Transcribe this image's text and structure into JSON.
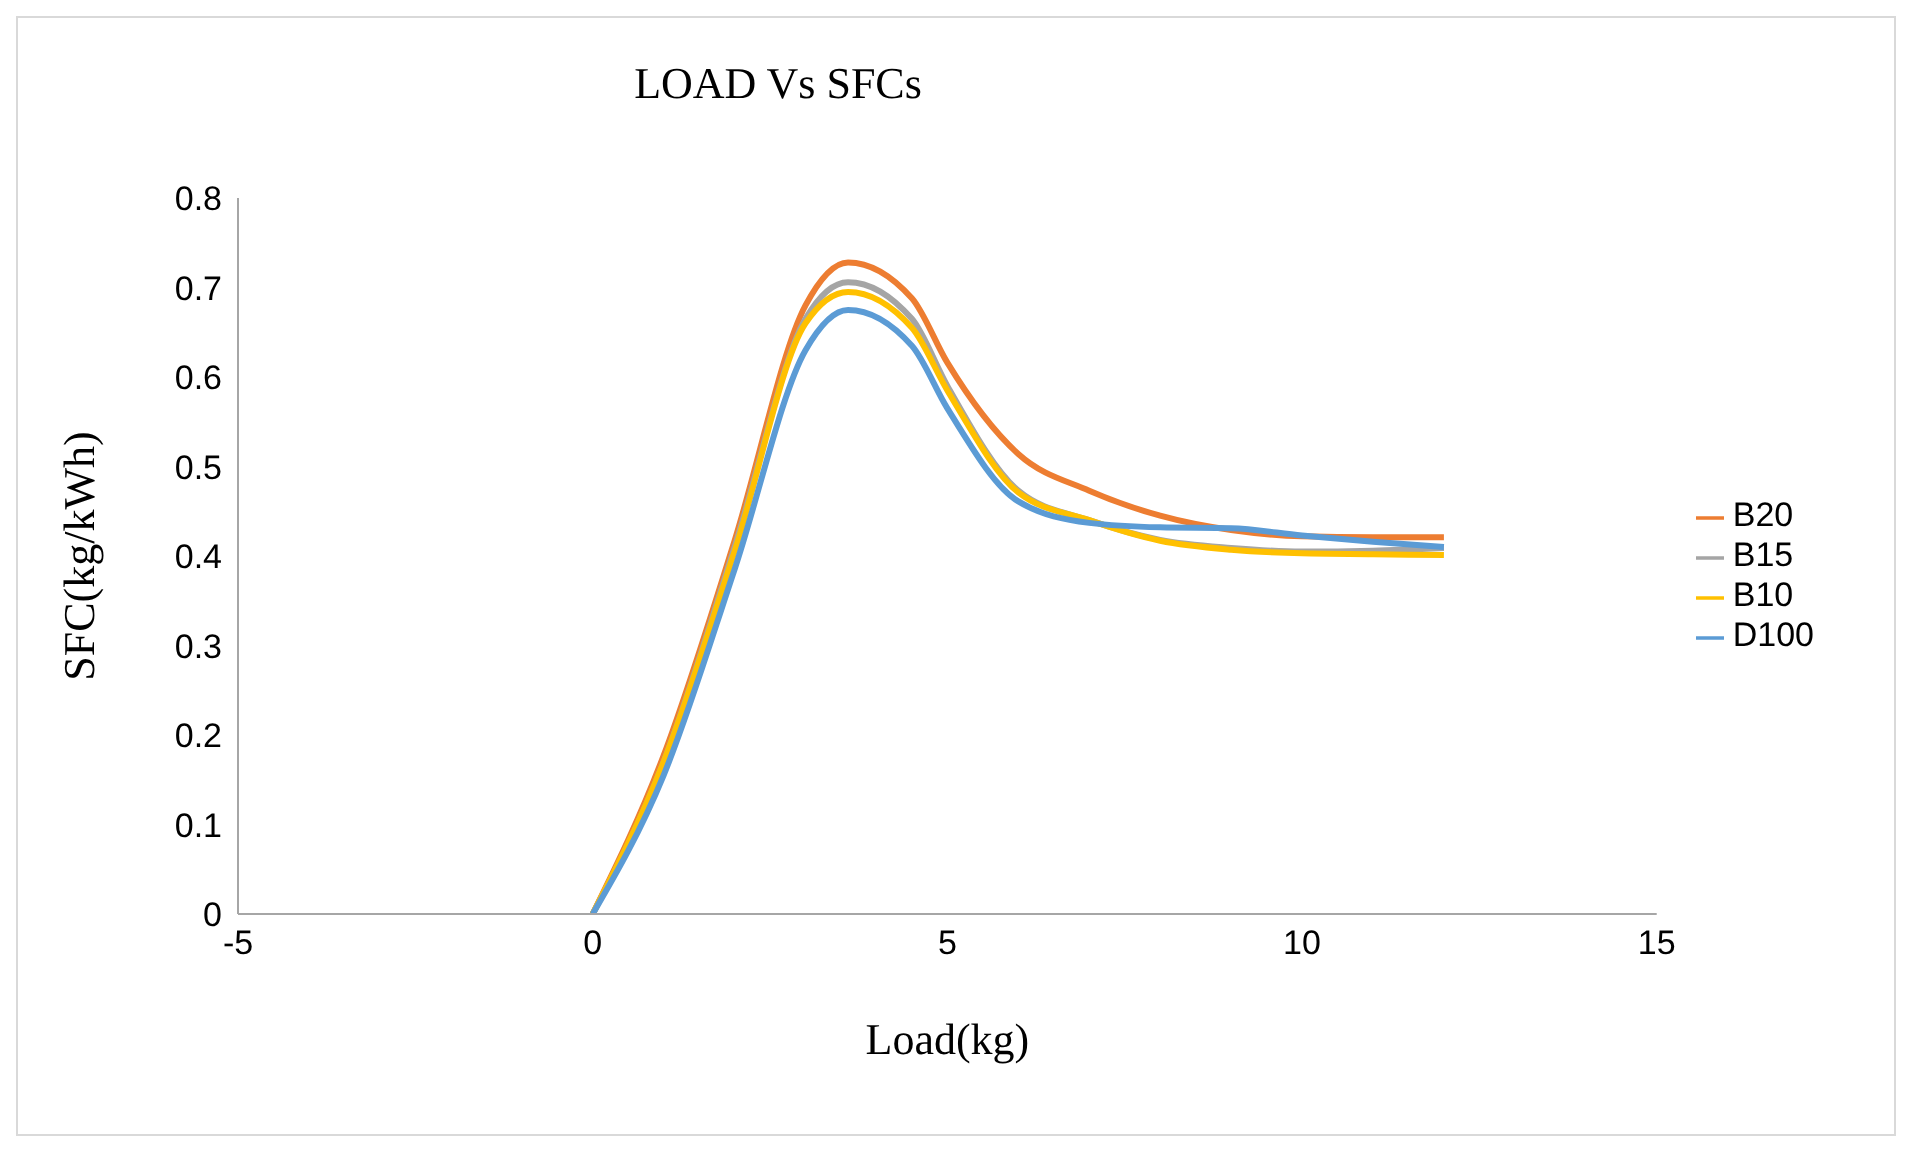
{
  "chart_data": {
    "type": "line",
    "title": "LOAD Vs SFCs",
    "xlabel": "Load(kg)",
    "ylabel": "SFC(kg/kWh)",
    "xlim": [
      -5,
      15
    ],
    "xticks": [
      -5,
      0,
      5,
      10,
      15
    ],
    "ylim": [
      0,
      0.8
    ],
    "yticks": [
      0,
      0.1,
      0.2,
      0.3,
      0.4,
      0.5,
      0.6,
      0.7,
      0.8
    ],
    "grid": false,
    "legend": "right",
    "marker": "none",
    "line_style": "solid",
    "x": [
      0,
      1,
      2,
      3,
      3.6,
      4.5,
      5,
      6,
      7,
      8,
      9,
      10,
      11,
      12
    ],
    "series": [
      {
        "name": "B20",
        "color": "#ed7d31",
        "values": [
          0,
          0.177,
          0.417,
          0.68,
          0.728,
          0.688,
          0.616,
          0.514,
          0.473,
          0.445,
          0.429,
          0.422,
          0.421,
          0.421
        ]
      },
      {
        "name": "B15",
        "color": "#a5a5a5",
        "values": [
          0,
          0.17,
          0.41,
          0.665,
          0.706,
          0.665,
          0.59,
          0.473,
          0.44,
          0.418,
          0.409,
          0.405,
          0.406,
          0.409
        ]
      },
      {
        "name": "B10",
        "color": "#ffc000",
        "values": [
          0,
          0.17,
          0.405,
          0.66,
          0.695,
          0.655,
          0.585,
          0.471,
          0.44,
          0.417,
          0.407,
          0.403,
          0.402,
          0.401
        ]
      },
      {
        "name": "D100",
        "color": "#5b9bd5",
        "values": [
          0,
          0.155,
          0.385,
          0.63,
          0.675,
          0.635,
          0.565,
          0.461,
          0.437,
          0.432,
          0.431,
          0.423,
          0.416,
          0.41
        ]
      }
    ]
  }
}
